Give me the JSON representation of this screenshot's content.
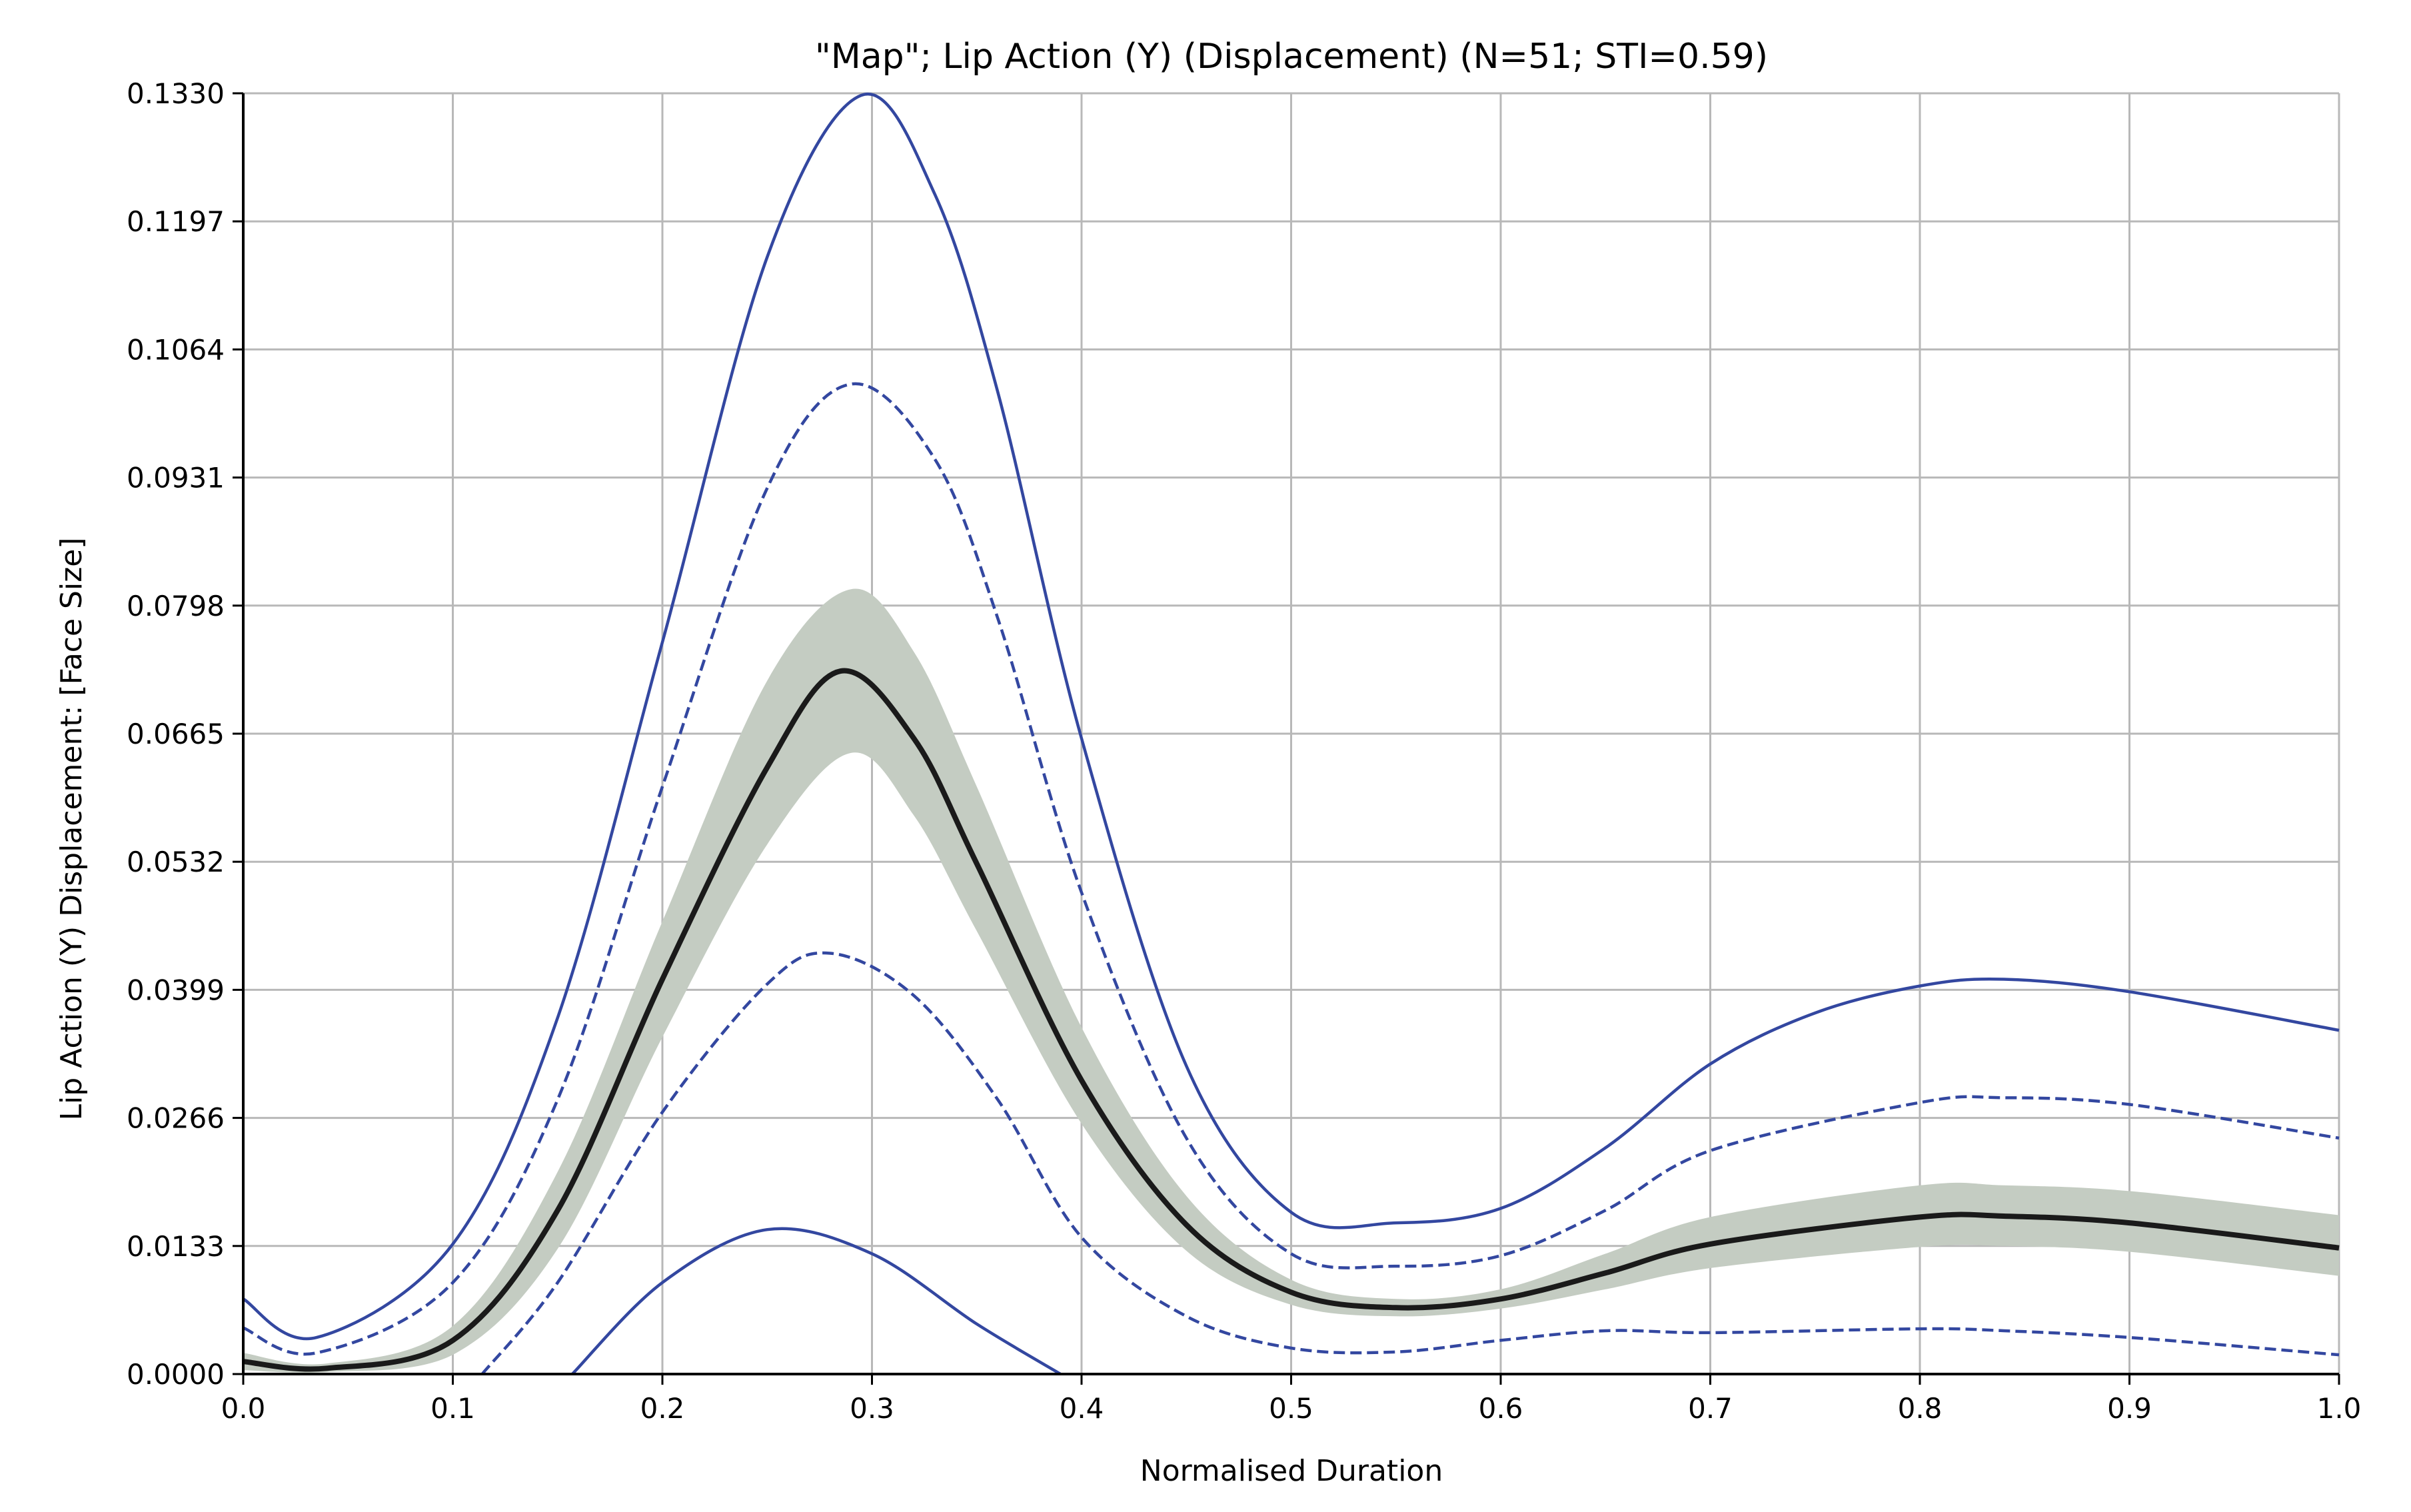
{
  "chart_data": {
    "type": "line",
    "title": "\"Map\"; Lip Action (Y) (Displacement) (N=51; STI=0.59)",
    "xlabel": "Normalised Duration",
    "ylabel": "Lip Action (Y) Displacement: [Face Size]",
    "xlim": [
      0.0,
      1.0
    ],
    "ylim": [
      0.0,
      0.133
    ],
    "x_ticks": [
      "0.0",
      "0.1",
      "0.2",
      "0.3",
      "0.4",
      "0.5",
      "0.6",
      "0.7",
      "0.8",
      "0.9",
      "1.0"
    ],
    "y_ticks": [
      "0.0000",
      "0.0133",
      "0.0266",
      "0.0399",
      "0.0532",
      "0.0665",
      "0.0798",
      "0.0931",
      "0.1064",
      "0.1197",
      "0.1330"
    ],
    "grid": true,
    "colors": {
      "mean": "#1a1a1a",
      "band": "#c4ccc2",
      "bounds": "#3347a0"
    },
    "series": [
      {
        "role": "mean",
        "x": [
          0.0,
          0.04,
          0.1,
          0.15,
          0.2,
          0.25,
          0.285,
          0.32,
          0.35,
          0.4,
          0.45,
          0.5,
          0.55,
          0.6,
          0.65,
          0.7,
          0.8,
          0.84,
          0.9,
          1.0
        ],
        "values": [
          0.0013,
          0.0006,
          0.0035,
          0.017,
          0.041,
          0.063,
          0.073,
          0.066,
          0.053,
          0.0305,
          0.0155,
          0.0085,
          0.0069,
          0.0078,
          0.0105,
          0.0135,
          0.0163,
          0.0164,
          0.0157,
          0.0131
        ]
      },
      {
        "role": "band-upper",
        "x": [
          0.0,
          0.04,
          0.1,
          0.15,
          0.2,
          0.25,
          0.29,
          0.32,
          0.35,
          0.4,
          0.45,
          0.5,
          0.55,
          0.6,
          0.65,
          0.7,
          0.8,
          0.84,
          0.9,
          1.0
        ],
        "values": [
          0.0022,
          0.0011,
          0.005,
          0.021,
          0.047,
          0.072,
          0.0815,
          0.075,
          0.061,
          0.036,
          0.0185,
          0.0098,
          0.0078,
          0.0088,
          0.0125,
          0.0163,
          0.0196,
          0.0196,
          0.019,
          0.0165
        ]
      },
      {
        "role": "band-lower",
        "x": [
          0.0,
          0.04,
          0.1,
          0.15,
          0.2,
          0.25,
          0.29,
          0.32,
          0.35,
          0.4,
          0.45,
          0.5,
          0.55,
          0.6,
          0.65,
          0.7,
          0.8,
          0.84,
          0.9,
          1.0
        ],
        "values": [
          0.0004,
          0.0002,
          0.002,
          0.013,
          0.035,
          0.055,
          0.0645,
          0.058,
          0.046,
          0.026,
          0.0128,
          0.0072,
          0.006,
          0.0068,
          0.0088,
          0.011,
          0.0132,
          0.0133,
          0.0127,
          0.0102
        ]
      },
      {
        "role": "outer-upper",
        "style": "solid",
        "x": [
          0.0,
          0.035,
          0.1,
          0.15,
          0.2,
          0.25,
          0.295,
          0.33,
          0.36,
          0.4,
          0.45,
          0.5,
          0.55,
          0.6,
          0.65,
          0.7,
          0.75,
          0.8,
          0.84,
          0.9,
          1.0
        ],
        "values": [
          0.0078,
          0.0038,
          0.0135,
          0.037,
          0.076,
          0.116,
          0.1328,
          0.1225,
          0.102,
          0.066,
          0.032,
          0.0168,
          0.0157,
          0.0172,
          0.0235,
          0.0322,
          0.0375,
          0.0403,
          0.041,
          0.0397,
          0.0357
        ]
      },
      {
        "role": "inner-upper",
        "style": "dashed",
        "x": [
          0.0,
          0.035,
          0.1,
          0.15,
          0.2,
          0.25,
          0.29,
          0.33,
          0.36,
          0.4,
          0.45,
          0.5,
          0.55,
          0.6,
          0.65,
          0.7,
          0.8,
          0.84,
          0.9,
          1.0
        ],
        "values": [
          0.0048,
          0.0022,
          0.0095,
          0.0285,
          0.061,
          0.092,
          0.1028,
          0.095,
          0.0785,
          0.05,
          0.0245,
          0.0125,
          0.0112,
          0.0123,
          0.017,
          0.0232,
          0.0282,
          0.0287,
          0.028,
          0.0245
        ]
      },
      {
        "role": "inner-lower",
        "style": "dashed",
        "x": [
          0.114,
          0.15,
          0.2,
          0.25,
          0.28,
          0.32,
          0.36,
          0.4,
          0.45,
          0.5,
          0.55,
          0.6,
          0.65,
          0.7,
          0.8,
          0.84,
          0.9,
          1.0
        ],
        "values": [
          0.0,
          0.0095,
          0.0272,
          0.0405,
          0.0437,
          0.0393,
          0.0285,
          0.0142,
          0.006,
          0.0027,
          0.0023,
          0.0035,
          0.0045,
          0.0043,
          0.0047,
          0.0045,
          0.0038,
          0.002
        ]
      },
      {
        "role": "outer-lower",
        "style": "solid",
        "x": [
          0.157,
          0.2,
          0.25,
          0.3,
          0.35,
          0.39
        ],
        "values": [
          0.0,
          0.0095,
          0.015,
          0.0125,
          0.0052,
          0.0
        ]
      }
    ]
  }
}
